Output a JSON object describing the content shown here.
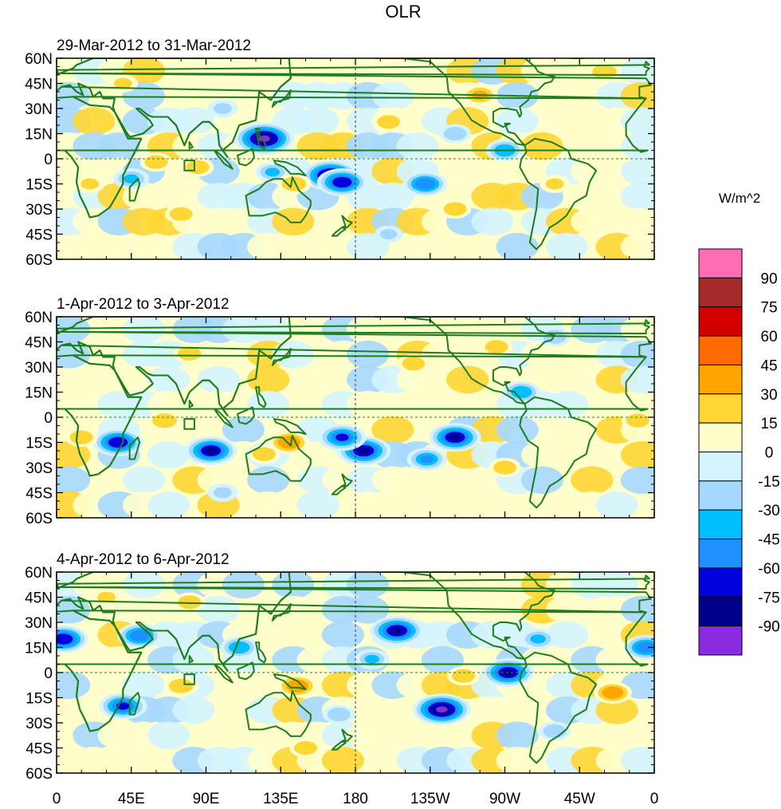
{
  "chart_data": {
    "type": "heatmap",
    "title": "OLR",
    "units_label": "W/m^2",
    "panels": [
      {
        "subtitle": "29-Mar-2012 to 31-Mar-2012"
      },
      {
        "subtitle": "1-Apr-2012 to 3-Apr-2012"
      },
      {
        "subtitle": "4-Apr-2012 to 6-Apr-2012"
      }
    ],
    "lat_ticks": [
      "60N",
      "45N",
      "30N",
      "15N",
      "0",
      "15S",
      "30S",
      "45S",
      "60S"
    ],
    "lat_values": [
      60,
      45,
      30,
      15,
      0,
      -15,
      -30,
      -45,
      -60
    ],
    "lon_ticks": [
      "0",
      "45E",
      "90E",
      "135E",
      "180",
      "135W",
      "90W",
      "45W",
      "0"
    ],
    "lon_values": [
      0,
      45,
      90,
      135,
      180,
      225,
      270,
      315,
      360
    ],
    "lon_range": [
      0,
      360
    ],
    "lat_range": [
      -60,
      60
    ],
    "colorbar": {
      "levels": [
        "90",
        "75",
        "60",
        "45",
        "30",
        "15",
        "0",
        "-15",
        "-30",
        "-45",
        "-60",
        "-75",
        "-90"
      ],
      "colors": [
        "#ff6eb4",
        "#a52a2a",
        "#d40000",
        "#ff6a00",
        "#ffa500",
        "#ffd633",
        "#ffffcc",
        "#d4f4ff",
        "#a6d8ff",
        "#00bfff",
        "#1e90ff",
        "#0000dd",
        "#00008b",
        "#8a2be2"
      ]
    },
    "anomalies": [
      [
        {
          "lon": 125,
          "lat": 12,
          "v": -95
        },
        {
          "lon": 165,
          "lat": -10,
          "v": -85
        },
        {
          "lon": 172,
          "lat": -14,
          "v": -70
        },
        {
          "lon": 222,
          "lat": -15,
          "v": -55
        },
        {
          "lon": 45,
          "lat": -12,
          "v": -35
        },
        {
          "lon": 85,
          "lat": -5,
          "v": 25
        },
        {
          "lon": 60,
          "lat": -2,
          "v": 25
        },
        {
          "lon": 20,
          "lat": -15,
          "v": 20
        },
        {
          "lon": 75,
          "lat": -33,
          "v": 25
        },
        {
          "lon": 130,
          "lat": -8,
          "v": -30
        },
        {
          "lon": 143,
          "lat": -15,
          "v": 30
        },
        {
          "lon": 200,
          "lat": 22,
          "v": 25
        },
        {
          "lon": 255,
          "lat": 38,
          "v": 35
        },
        {
          "lon": 330,
          "lat": 52,
          "v": 30
        },
        {
          "lon": 300,
          "lat": -15,
          "v": 20
        },
        {
          "lon": 240,
          "lat": -30,
          "v": 25
        },
        {
          "lon": 270,
          "lat": 5,
          "v": -40
        },
        {
          "lon": 40,
          "lat": 45,
          "v": 20
        },
        {
          "lon": 100,
          "lat": 30,
          "v": -20
        },
        {
          "lon": 200,
          "lat": -45,
          "v": -15
        },
        {
          "lon": 240,
          "lat": 15,
          "v": -25
        }
      ],
      [
        {
          "lon": 93,
          "lat": -20,
          "v": -75
        },
        {
          "lon": 37,
          "lat": -15,
          "v": -70
        },
        {
          "lon": 185,
          "lat": -20,
          "v": -80
        },
        {
          "lon": 172,
          "lat": -12,
          "v": -65
        },
        {
          "lon": 240,
          "lat": -12,
          "v": -75
        },
        {
          "lon": 223,
          "lat": -25,
          "v": -45
        },
        {
          "lon": 280,
          "lat": 15,
          "v": -40
        },
        {
          "lon": 140,
          "lat": -15,
          "v": 45
        },
        {
          "lon": 125,
          "lat": -22,
          "v": 25
        },
        {
          "lon": 65,
          "lat": -2,
          "v": 30
        },
        {
          "lon": 15,
          "lat": -12,
          "v": 25
        },
        {
          "lon": 100,
          "lat": -45,
          "v": -20
        },
        {
          "lon": 215,
          "lat": 32,
          "v": 25
        },
        {
          "lon": 265,
          "lat": 42,
          "v": 25
        },
        {
          "lon": 350,
          "lat": -2,
          "v": 25
        },
        {
          "lon": 270,
          "lat": -30,
          "v": 25
        },
        {
          "lon": 80,
          "lat": 38,
          "v": 25
        },
        {
          "lon": 300,
          "lat": 48,
          "v": -25
        }
      ],
      [
        {
          "lon": 4,
          "lat": 20,
          "v": -70
        },
        {
          "lon": 50,
          "lat": 22,
          "v": -55
        },
        {
          "lon": 40,
          "lat": -20,
          "v": -65
        },
        {
          "lon": 205,
          "lat": 25,
          "v": -80
        },
        {
          "lon": 232,
          "lat": -22,
          "v": -90
        },
        {
          "lon": 272,
          "lat": 0,
          "v": -75
        },
        {
          "lon": 290,
          "lat": 20,
          "v": -35
        },
        {
          "lon": 145,
          "lat": -8,
          "v": 45
        },
        {
          "lon": 335,
          "lat": -12,
          "v": 40
        },
        {
          "lon": 75,
          "lat": -8,
          "v": 30
        },
        {
          "lon": 150,
          "lat": -45,
          "v": 25
        },
        {
          "lon": 245,
          "lat": -2,
          "v": 25
        },
        {
          "lon": 355,
          "lat": 15,
          "v": -55
        },
        {
          "lon": 80,
          "lat": 42,
          "v": 25
        },
        {
          "lon": 190,
          "lat": 8,
          "v": -30
        },
        {
          "lon": 110,
          "lat": 15,
          "v": -40
        },
        {
          "lon": 300,
          "lat": -35,
          "v": -25
        },
        {
          "lon": 30,
          "lat": 45,
          "v": 20
        },
        {
          "lon": 170,
          "lat": -25,
          "v": -25
        }
      ]
    ]
  }
}
